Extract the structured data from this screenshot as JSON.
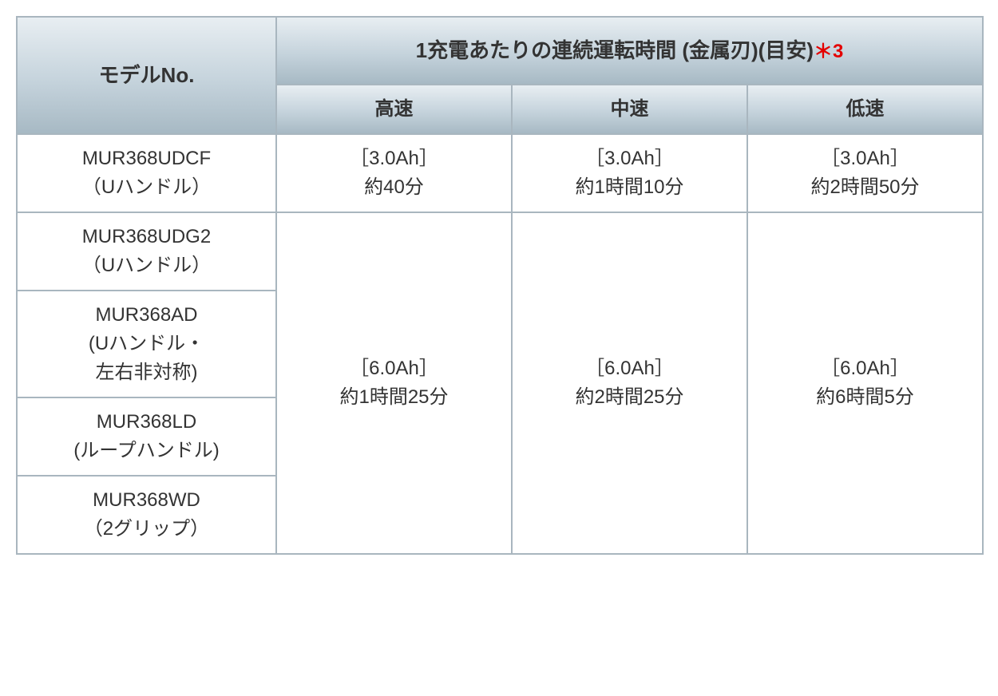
{
  "table": {
    "columns": {
      "model_header": "モデルNo.",
      "top_header_main": "1充電あたりの連続運転時間 (金属刃)(目安)",
      "top_header_note": "＊3",
      "speed_headers": [
        "高速",
        "中速",
        "低速"
      ]
    },
    "rows": [
      {
        "model_name": "MUR368UDCF",
        "model_sub": "（Uハンドル）",
        "high_ah": "［3.0Ah］",
        "high_time": "約40分",
        "mid_ah": "［3.0Ah］",
        "mid_time": "約1時間10分",
        "low_ah": "［3.0Ah］",
        "low_time": "約2時間50分"
      },
      {
        "model_name": "MUR368UDG2",
        "model_sub": "（Uハンドル）",
        "merged_high_ah": "［6.0Ah］",
        "merged_high_time": "約1時間25分",
        "merged_mid_ah": "［6.0Ah］",
        "merged_mid_time": "約2時間25分",
        "merged_low_ah": "［6.0Ah］",
        "merged_low_time": "約6時間5分"
      },
      {
        "model_name": "MUR368AD",
        "model_sub_line1": "(Uハンドル・",
        "model_sub_line2": "左右非対称)"
      },
      {
        "model_name": "MUR368LD",
        "model_sub": "(ループハンドル)"
      },
      {
        "model_name": "MUR368WD",
        "model_sub": "（2グリップ）"
      }
    ],
    "style": {
      "border_color": "#a9b6bf",
      "header_gradient_top": "#e8eef2",
      "header_gradient_mid": "#c5d3dc",
      "header_gradient_bottom": "#a7b9c4",
      "note_color": "#e40000",
      "text_color": "#333333",
      "background_color": "#ffffff",
      "font_size_body": 24,
      "font_size_header": 26
    }
  }
}
